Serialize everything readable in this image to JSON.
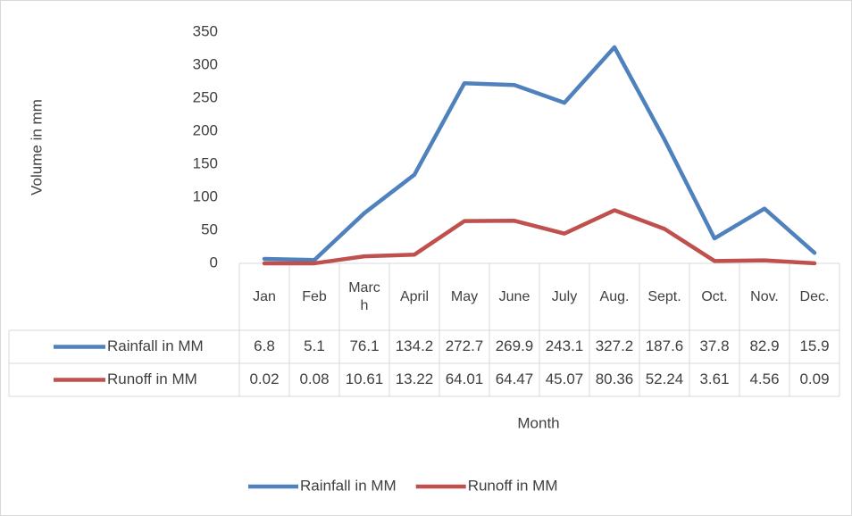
{
  "chart_data": {
    "type": "line",
    "y_label": "Volume in mm",
    "x_label": "Month",
    "categories": [
      "Jan",
      "Feb",
      "March",
      "April",
      "May",
      "June",
      "July",
      "Aug.",
      "Sept.",
      "Oct.",
      "Nov.",
      "Dec."
    ],
    "series": [
      {
        "name": "Rainfall in MM",
        "color": "#4f81bd",
        "values": [
          6.8,
          5.1,
          76.1,
          134.2,
          272.7,
          269.9,
          243.1,
          327.2,
          187.6,
          37.8,
          82.9,
          15.9
        ]
      },
      {
        "name": "Runoff in MM",
        "color": "#c0504d",
        "values": [
          0.02,
          0.08,
          10.61,
          13.22,
          64.01,
          64.47,
          45.07,
          80.36,
          52.24,
          3.61,
          4.56,
          0.09
        ]
      }
    ],
    "ylim": [
      0,
      350
    ],
    "yticks": [
      0,
      50,
      100,
      150,
      200,
      250,
      300,
      350
    ],
    "grid": false,
    "legend": "bottom"
  }
}
